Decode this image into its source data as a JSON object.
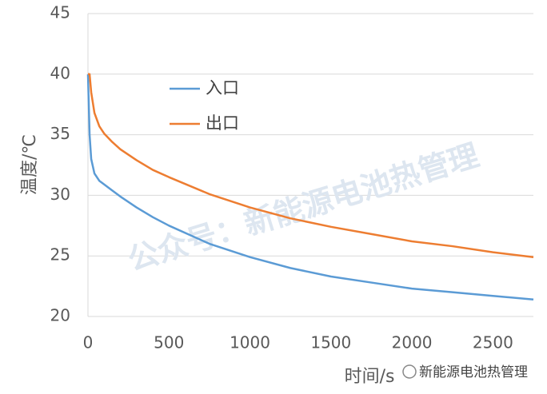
{
  "chart_data": {
    "type": "line",
    "x_label": "时间/s",
    "y_label": "温度/℃",
    "x": [
      0,
      10,
      20,
      40,
      70,
      100,
      150,
      200,
      300,
      400,
      500,
      750,
      1000,
      1250,
      1500,
      1750,
      2000,
      2250,
      2500,
      2750
    ],
    "series": [
      {
        "name": "入口",
        "color": "#5b9bd5",
        "values": [
          40,
          35,
          33,
          31.8,
          31.2,
          30.9,
          30.4,
          29.9,
          29.0,
          28.2,
          27.5,
          26.0,
          24.9,
          24.0,
          23.3,
          22.8,
          22.3,
          22.0,
          21.7,
          21.4
        ]
      },
      {
        "name": "出口",
        "color": "#ed7d31",
        "values": [
          40,
          40,
          38.5,
          36.8,
          35.7,
          35.1,
          34.4,
          33.8,
          32.9,
          32.1,
          31.5,
          30.1,
          29.0,
          28.1,
          27.4,
          26.8,
          26.2,
          25.8,
          25.3,
          24.9
        ]
      }
    ],
    "xlim": [
      0,
      2750
    ],
    "xticks": [
      0,
      500,
      1000,
      1500,
      2000,
      2500
    ],
    "ylim": [
      20,
      45
    ],
    "yticks": [
      20,
      25,
      30,
      35,
      40,
      45
    ],
    "grid": true,
    "legend": "upper-center",
    "annotations": [
      "公众号：新能源电池热管理",
      "新能源电池热管理"
    ]
  }
}
